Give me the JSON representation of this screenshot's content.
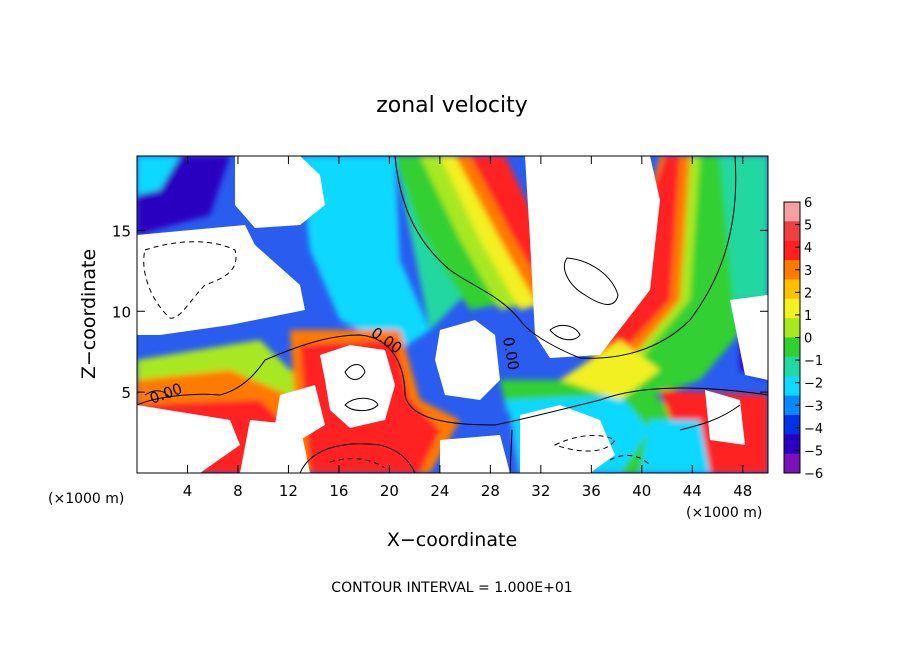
{
  "chart_data": {
    "type": "heatmap",
    "title": "zonal velocity",
    "xlabel": "X−coordinate",
    "ylabel": "Z−coordinate",
    "x_unit_left": "(×1000 m)",
    "x_unit_right": "(×1000 m)",
    "footer": "CONTOUR INTERVAL = 1.000E+01",
    "xlim": [
      0,
      50
    ],
    "ylim": [
      0,
      19.6
    ],
    "x_ticks": [
      4,
      8,
      12,
      16,
      20,
      24,
      28,
      32,
      36,
      40,
      44,
      48
    ],
    "y_ticks": [
      5,
      10,
      15
    ],
    "colorbar": {
      "labels": [
        "6",
        "5",
        "4",
        "3",
        "2",
        "1",
        "0",
        "−1",
        "−2",
        "−3",
        "−4",
        "−5",
        "−6"
      ],
      "colors": [
        "#f4a0a0",
        "#ee4040",
        "#ff2020",
        "#ff7a00",
        "#ffc000",
        "#f2f020",
        "#a8e820",
        "#30d030",
        "#20d8a0",
        "#10d8ff",
        "#0a88ff",
        "#0030e8",
        "#2a00c0",
        "#7a10b8"
      ]
    },
    "contour_labels": [
      "0.00",
      "0.00",
      "0.00"
    ]
  }
}
